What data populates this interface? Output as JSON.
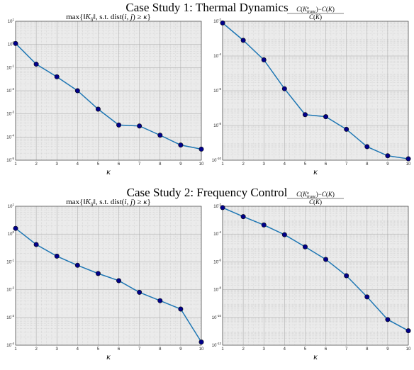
{
  "figure": {
    "case1_title": "Case Study 1: Thermal Dynamics",
    "case2_title": "Case Study 2: Frequency Control"
  },
  "chart_data": [
    {
      "type": "line",
      "yscale": "log",
      "grid": true,
      "title": "max{‖K_ij‖, s.t. dist(i, j) ≥ κ}",
      "xlabel": "κ",
      "ylabel": "",
      "x": [
        1,
        2,
        3,
        4,
        5,
        6,
        7,
        8,
        9,
        10
      ],
      "y": [
        1.1,
        0.14,
        0.04,
        0.01,
        0.0016,
        0.00033,
        0.0003,
        0.00012,
        4.5e-05,
        3e-05
      ],
      "xlim": [
        1,
        10
      ],
      "ylim": [
        1e-05,
        10
      ],
      "xticks": [
        1,
        2,
        3,
        4,
        5,
        6,
        7,
        8,
        9,
        10
      ],
      "yticks": [
        -5,
        -4,
        -3,
        -2,
        -1,
        0,
        1
      ],
      "color": "#1f77b4",
      "marker_color": "#00008b"
    },
    {
      "type": "line",
      "yscale": "log",
      "grid": true,
      "title": "(C(K^κ_trunc) − C(K)) / C(K)",
      "xlabel": "κ",
      "ylabel": "",
      "x": [
        1,
        2,
        3,
        4,
        5,
        6,
        7,
        8,
        9,
        10
      ],
      "y": [
        0.008,
        0.0008,
        6e-05,
        1.3e-06,
        4.2e-08,
        3.2e-08,
        6e-09,
        6e-10,
        1.8e-10,
        1.2e-10
      ],
      "xlim": [
        1,
        10
      ],
      "ylim": [
        1e-10,
        0.01
      ],
      "xticks": [
        1,
        2,
        3,
        4,
        5,
        6,
        7,
        8,
        9,
        10
      ],
      "yticks": [
        -10,
        -8,
        -6,
        -4,
        -2
      ],
      "color": "#1f77b4",
      "marker_color": "#00008b"
    },
    {
      "type": "line",
      "yscale": "log",
      "grid": true,
      "title": "max{‖K_ij‖, s.t. dist(i, j) ≥ κ}",
      "xlabel": "κ",
      "ylabel": "",
      "x": [
        1,
        2,
        3,
        4,
        5,
        6,
        7,
        8,
        9,
        10
      ],
      "y": [
        1.6,
        0.42,
        0.16,
        0.075,
        0.038,
        0.021,
        0.008,
        0.004,
        0.002,
        0.00013
      ],
      "xlim": [
        1,
        10
      ],
      "ylim": [
        0.0001,
        10
      ],
      "xticks": [
        1,
        2,
        3,
        4,
        5,
        6,
        7,
        8,
        9,
        10
      ],
      "yticks": [
        -4,
        -3,
        -2,
        -1,
        0,
        1
      ],
      "color": "#1f77b4",
      "marker_color": "#00008b"
    },
    {
      "type": "line",
      "yscale": "log",
      "grid": true,
      "title": "(C(K^κ_trunc) − C(K)) / C(K)",
      "xlabel": "κ",
      "ylabel": "",
      "x": [
        1,
        2,
        3,
        4,
        5,
        6,
        7,
        8,
        9,
        10
      ],
      "y": [
        0.008,
        0.0018,
        0.00045,
        9e-05,
        1.2e-05,
        1.5e-06,
        1e-07,
        3e-09,
        7e-11,
        1.1e-11
      ],
      "xlim": [
        1,
        10
      ],
      "ylim": [
        1e-12,
        0.01
      ],
      "xticks": [
        1,
        2,
        3,
        4,
        5,
        6,
        7,
        8,
        9,
        10
      ],
      "yticks": [
        -12,
        -10,
        -8,
        -6,
        -4,
        -2
      ],
      "color": "#1f77b4",
      "marker_color": "#00008b"
    }
  ]
}
